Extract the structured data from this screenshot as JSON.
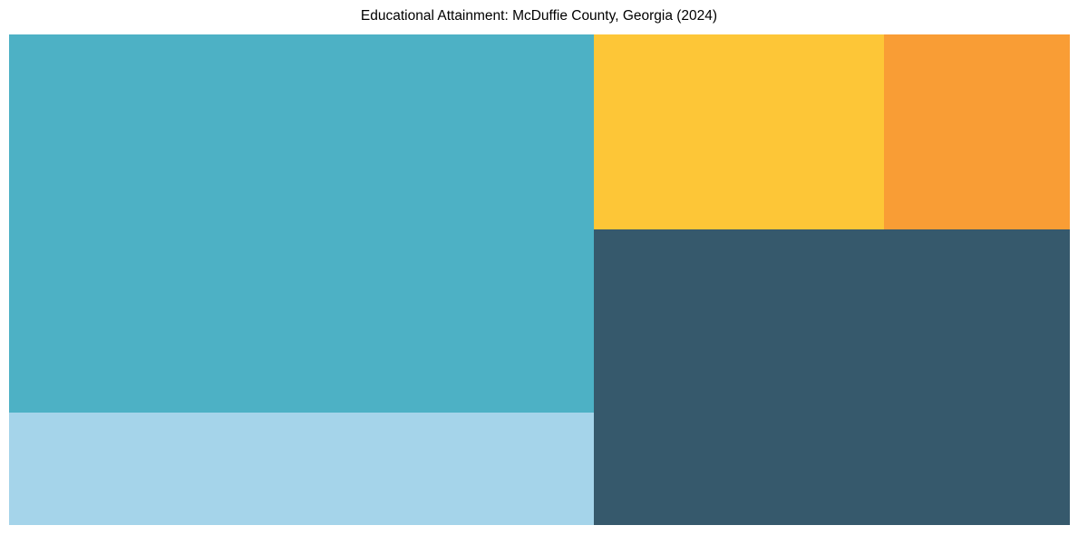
{
  "page": {
    "background": "#ffffff"
  },
  "title": "Educational Attainment: McDuffie County, Georgia (2024)",
  "chart_data": {
    "type": "treemap",
    "title": "Educational Attainment: McDuffie County, Georgia (2024)",
    "legend": "none",
    "labels_visible": false,
    "note": "Treemap cells carry no visible text labels or value labels in the image; values below are percent of total plot area measured from each cell's geometry.",
    "segments": [
      {
        "name": "teal",
        "color": "#4DB1C5",
        "value_pct": 42.5,
        "rect": {
          "left_pct": 0,
          "top_pct": 0,
          "width_pct": 55.13,
          "height_pct": 77.08
        }
      },
      {
        "name": "light-blue",
        "color": "#A5D4EA",
        "value_pct": 12.6,
        "rect": {
          "left_pct": 0,
          "top_pct": 77.08,
          "width_pct": 55.13,
          "height_pct": 22.92
        }
      },
      {
        "name": "yellow",
        "color": "#FDC637",
        "value_pct": 10.9,
        "rect": {
          "left_pct": 55.13,
          "top_pct": 0,
          "width_pct": 27.35,
          "height_pct": 39.74
        }
      },
      {
        "name": "orange",
        "color": "#F99D35",
        "value_pct": 7.0,
        "rect": {
          "left_pct": 82.48,
          "top_pct": 0,
          "width_pct": 17.52,
          "height_pct": 39.74
        }
      },
      {
        "name": "dark-slate",
        "color": "#36596C",
        "value_pct": 27.0,
        "rect": {
          "left_pct": 55.13,
          "top_pct": 39.74,
          "width_pct": 44.87,
          "height_pct": 60.26
        }
      }
    ]
  }
}
